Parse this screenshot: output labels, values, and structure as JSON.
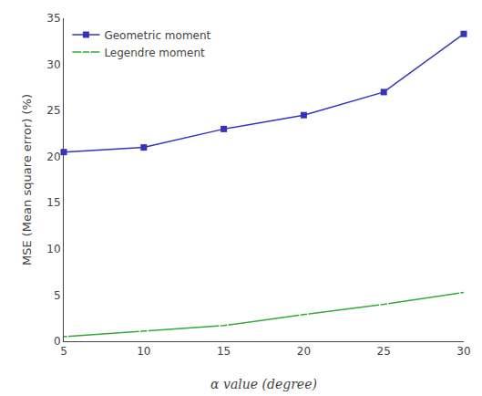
{
  "chart_data": {
    "type": "line",
    "x": [
      5,
      10,
      15,
      20,
      25,
      30
    ],
    "series": [
      {
        "name": "Geometric moment",
        "color": "#3333bb",
        "marker": "square",
        "values": [
          20.5,
          21.0,
          23.0,
          24.5,
          27.0,
          33.3
        ]
      },
      {
        "name": "Legendre moment",
        "color": "#33aa33",
        "marker": "circle-open",
        "values": [
          0.5,
          1.1,
          1.7,
          2.9,
          4.0,
          5.3
        ]
      }
    ],
    "xlabel": "α value (degree)",
    "ylabel": "MSE (Mean square error) (%)",
    "xlim": [
      5,
      30
    ],
    "ylim": [
      0,
      35
    ],
    "xticks": [
      5,
      10,
      15,
      20,
      25,
      30
    ],
    "yticks": [
      0,
      5,
      10,
      15,
      20,
      25,
      30,
      35
    ],
    "grid": false,
    "legend": "upper left"
  }
}
